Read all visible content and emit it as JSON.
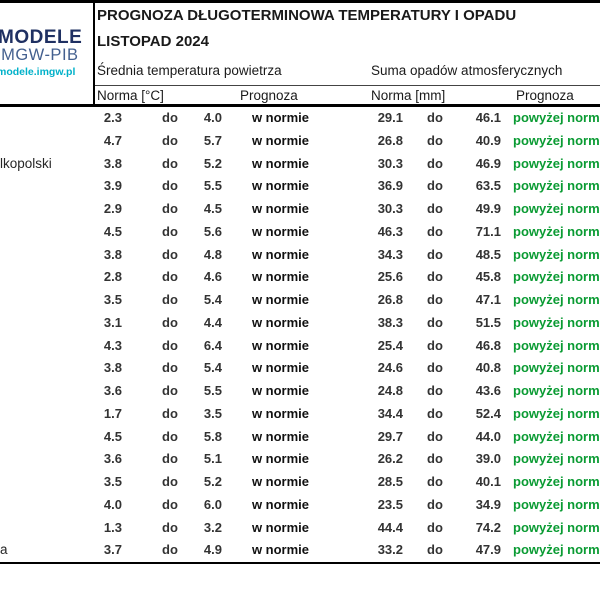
{
  "logo": {
    "line1": "MODELE",
    "line2": "IMGW-PIB",
    "url": "modele.imgw.pl"
  },
  "header": {
    "title": "PROGNOZA DŁUGOTERMINOWA TEMPERATURY I OPADU",
    "subtitle": "LISTOPAD 2024"
  },
  "table": {
    "group_headers": {
      "temperature": "Średnia temperatura powietrza",
      "precipitation": "Suma opadów atmosferycznych"
    },
    "column_headers": {
      "temp_norm": "Norma [°C]",
      "temp_forecast": "Prognoza",
      "precip_norm": "Norma [mm]",
      "precip_forecast": "Prognoza"
    },
    "do_label": "do",
    "rows": [
      {
        "city": "",
        "t_low": "2.3",
        "t_high": "4.0",
        "t_forecast": "w normie",
        "p_low": "29.1",
        "p_high": "46.1",
        "p_forecast": "powyżej norm"
      },
      {
        "city": "",
        "t_low": "4.7",
        "t_high": "5.7",
        "t_forecast": "w normie",
        "p_low": "26.8",
        "p_high": "40.9",
        "p_forecast": "powyżej norm"
      },
      {
        "city": "lkopolski",
        "t_low": "3.8",
        "t_high": "5.2",
        "t_forecast": "w normie",
        "p_low": "30.3",
        "p_high": "46.9",
        "p_forecast": "powyżej norm"
      },
      {
        "city": "",
        "t_low": "3.9",
        "t_high": "5.5",
        "t_forecast": "w normie",
        "p_low": "36.9",
        "p_high": "63.5",
        "p_forecast": "powyżej norm"
      },
      {
        "city": "",
        "t_low": "2.9",
        "t_high": "4.5",
        "t_forecast": "w normie",
        "p_low": "30.3",
        "p_high": "49.9",
        "p_forecast": "powyżej norm"
      },
      {
        "city": "",
        "t_low": "4.5",
        "t_high": "5.6",
        "t_forecast": "w normie",
        "p_low": "46.3",
        "p_high": "71.1",
        "p_forecast": "powyżej norm"
      },
      {
        "city": "",
        "t_low": "3.8",
        "t_high": "4.8",
        "t_forecast": "w normie",
        "p_low": "34.3",
        "p_high": "48.5",
        "p_forecast": "powyżej norm"
      },
      {
        "city": "",
        "t_low": "2.8",
        "t_high": "4.6",
        "t_forecast": "w normie",
        "p_low": "25.6",
        "p_high": "45.8",
        "p_forecast": "powyżej norm"
      },
      {
        "city": "",
        "t_low": "3.5",
        "t_high": "5.4",
        "t_forecast": "w normie",
        "p_low": "26.8",
        "p_high": "47.1",
        "p_forecast": "powyżej norm"
      },
      {
        "city": "",
        "t_low": "3.1",
        "t_high": "4.4",
        "t_forecast": "w normie",
        "p_low": "38.3",
        "p_high": "51.5",
        "p_forecast": "powyżej norm"
      },
      {
        "city": "",
        "t_low": "4.3",
        "t_high": "6.4",
        "t_forecast": "w normie",
        "p_low": "25.4",
        "p_high": "46.8",
        "p_forecast": "powyżej norm"
      },
      {
        "city": "",
        "t_low": "3.8",
        "t_high": "5.4",
        "t_forecast": "w normie",
        "p_low": "24.6",
        "p_high": "40.8",
        "p_forecast": "powyżej norm"
      },
      {
        "city": "",
        "t_low": "3.6",
        "t_high": "5.5",
        "t_forecast": "w normie",
        "p_low": "24.8",
        "p_high": "43.6",
        "p_forecast": "powyżej norm"
      },
      {
        "city": "",
        "t_low": "1.7",
        "t_high": "3.5",
        "t_forecast": "w normie",
        "p_low": "34.4",
        "p_high": "52.4",
        "p_forecast": "powyżej norm"
      },
      {
        "city": "",
        "t_low": "4.5",
        "t_high": "5.8",
        "t_forecast": "w normie",
        "p_low": "29.7",
        "p_high": "44.0",
        "p_forecast": "powyżej norm"
      },
      {
        "city": "",
        "t_low": "3.6",
        "t_high": "5.1",
        "t_forecast": "w normie",
        "p_low": "26.2",
        "p_high": "39.0",
        "p_forecast": "powyżej norm"
      },
      {
        "city": "",
        "t_low": "3.5",
        "t_high": "5.2",
        "t_forecast": "w normie",
        "p_low": "28.5",
        "p_high": "40.1",
        "p_forecast": "powyżej norm"
      },
      {
        "city": "",
        "t_low": "4.0",
        "t_high": "6.0",
        "t_forecast": "w normie",
        "p_low": "23.5",
        "p_high": "34.9",
        "p_forecast": "powyżej norm"
      },
      {
        "city": "",
        "t_low": "1.3",
        "t_high": "3.2",
        "t_forecast": "w normie",
        "p_low": "44.4",
        "p_high": "74.2",
        "p_forecast": "powyżej norm"
      },
      {
        "city": "a",
        "t_low": "3.7",
        "t_high": "4.9",
        "t_forecast": "w normie",
        "p_low": "33.2",
        "p_high": "47.9",
        "p_forecast": "powyżej norm"
      }
    ]
  },
  "colors": {
    "forecast_above_norm": "#0a9b33",
    "logo_navy": "#1f3062",
    "logo_slate": "#44608f",
    "logo_cyan": "#00b1c9",
    "border_black": "#000000"
  }
}
